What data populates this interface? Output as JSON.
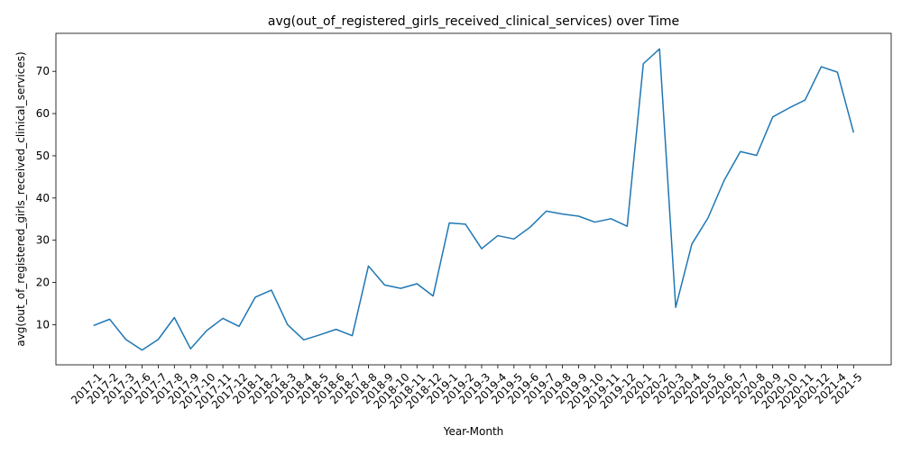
{
  "chart_data": {
    "type": "line",
    "title": "avg(out_of_registered_girls_received_clinical_services) over Time",
    "xlabel": "Year-Month",
    "ylabel": "avg(out_of_registered_girls_received_clinical_services)",
    "ylim": [
      0.5,
      79
    ],
    "yticks": [
      10,
      20,
      30,
      40,
      50,
      60,
      70
    ],
    "line_color": "#1f77b4",
    "grid": false,
    "categories": [
      "2017-1",
      "2017-2",
      "2017-3",
      "2017-6",
      "2017-7",
      "2017-8",
      "2017-9",
      "2017-10",
      "2017-11",
      "2017-12",
      "2018-1",
      "2018-2",
      "2018-3",
      "2018-4",
      "2018-5",
      "2018-6",
      "2018-7",
      "2018-8",
      "2018-9",
      "2018-10",
      "2018-11",
      "2018-12",
      "2019-1",
      "2019-2",
      "2019-3",
      "2019-4",
      "2019-5",
      "2019-6",
      "2019-7",
      "2019-8",
      "2019-9",
      "2019-10",
      "2019-11",
      "2019-12",
      "2020-1",
      "2020-2",
      "2020-3",
      "2020-4",
      "2020-5",
      "2020-6",
      "2020-7",
      "2020-8",
      "2020-9",
      "2020-10",
      "2020-11",
      "2020-12",
      "2021-4",
      "2021-5"
    ],
    "series": [
      {
        "values": [
          9.8,
          11.3,
          6.5,
          4.0,
          6.5,
          11.7,
          4.3,
          8.6,
          11.5,
          9.6,
          16.5,
          18.2,
          10.0,
          6.4,
          7.6,
          8.9,
          7.4,
          23.9,
          19.4,
          18.6,
          19.7,
          16.8,
          34.1,
          33.8,
          28.0,
          31.1,
          30.3,
          33.1,
          36.9,
          36.2,
          35.7,
          34.3,
          35.1,
          33.3,
          71.8,
          75.3,
          14.1,
          29.1,
          35.3,
          44.2,
          51.0,
          50.1,
          59.2,
          61.3,
          63.2,
          71.1,
          69.8,
          55.5
        ]
      }
    ]
  }
}
